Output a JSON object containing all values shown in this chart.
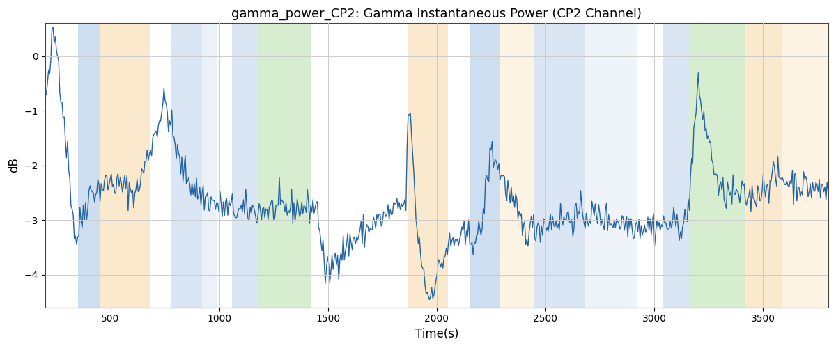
{
  "title": "gamma_power_CP2: Gamma Instantaneous Power (CP2 Channel)",
  "xlabel": "Time(s)",
  "ylabel": "dB",
  "xlim": [
    200,
    3800
  ],
  "ylim": [
    -4.6,
    0.6
  ],
  "yticks": [
    0,
    -1,
    -2,
    -3,
    -4
  ],
  "xticks": [
    500,
    1000,
    1500,
    2000,
    2500,
    3000,
    3500
  ],
  "line_color": "#2464a4",
  "line_width": 1.0,
  "bands": [
    {
      "xmin": 350,
      "xmax": 450,
      "color": "#adc8e8",
      "alpha": 0.6
    },
    {
      "xmin": 450,
      "xmax": 680,
      "color": "#f8d090",
      "alpha": 0.45
    },
    {
      "xmin": 780,
      "xmax": 920,
      "color": "#adc8e8",
      "alpha": 0.45
    },
    {
      "xmin": 920,
      "xmax": 990,
      "color": "#adc8e8",
      "alpha": 0.25
    },
    {
      "xmin": 1060,
      "xmax": 1180,
      "color": "#adc8e8",
      "alpha": 0.45
    },
    {
      "xmin": 1180,
      "xmax": 1420,
      "color": "#a8d898",
      "alpha": 0.45
    },
    {
      "xmin": 1870,
      "xmax": 2050,
      "color": "#f8d090",
      "alpha": 0.45
    },
    {
      "xmin": 2150,
      "xmax": 2290,
      "color": "#adc8e8",
      "alpha": 0.6
    },
    {
      "xmin": 2290,
      "xmax": 2450,
      "color": "#f8d090",
      "alpha": 0.25
    },
    {
      "xmin": 2450,
      "xmax": 2680,
      "color": "#adc8e8",
      "alpha": 0.45
    },
    {
      "xmin": 2680,
      "xmax": 2920,
      "color": "#adc8e8",
      "alpha": 0.2
    },
    {
      "xmin": 3040,
      "xmax": 3160,
      "color": "#adc8e8",
      "alpha": 0.45
    },
    {
      "xmin": 3160,
      "xmax": 3420,
      "color": "#a8d898",
      "alpha": 0.45
    },
    {
      "xmin": 3420,
      "xmax": 3590,
      "color": "#f8d090",
      "alpha": 0.45
    },
    {
      "xmin": 3590,
      "xmax": 3800,
      "color": "#f8d090",
      "alpha": 0.25
    }
  ],
  "seed": 42,
  "n_points": 700
}
